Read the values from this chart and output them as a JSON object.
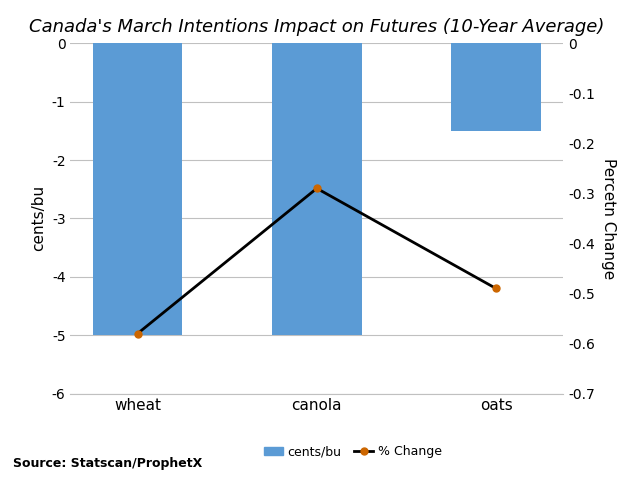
{
  "categories": [
    "wheat",
    "canola",
    "oats"
  ],
  "bar_values": [
    -5.0,
    -5.0,
    -1.5
  ],
  "pct_values": [
    -0.58,
    -0.29,
    -0.49
  ],
  "bar_color": "#5B9BD5",
  "line_color": "#000000",
  "marker_color": "#CC6600",
  "title": "Canada's March Intentions Impact on Futures (10-Year Average)",
  "ylabel_left": "cents/bu",
  "ylabel_right": "Percetn Change",
  "ylim_left": [
    -6,
    0
  ],
  "ylim_right": [
    -0.7,
    0
  ],
  "yticks_left": [
    0,
    -1,
    -2,
    -3,
    -4,
    -5,
    -6
  ],
  "yticks_right": [
    0,
    -0.1,
    -0.2,
    -0.3,
    -0.4,
    -0.5,
    -0.6,
    -0.7
  ],
  "source_text": "Source: Statscan/ProphetX",
  "legend_bar_label": "cents/bu",
  "legend_line_label": "% Change",
  "background_color": "#ffffff",
  "grid_color": "#c0c0c0",
  "title_fontsize": 13,
  "axis_fontsize": 11,
  "tick_fontsize": 10,
  "bar_width": 0.5
}
